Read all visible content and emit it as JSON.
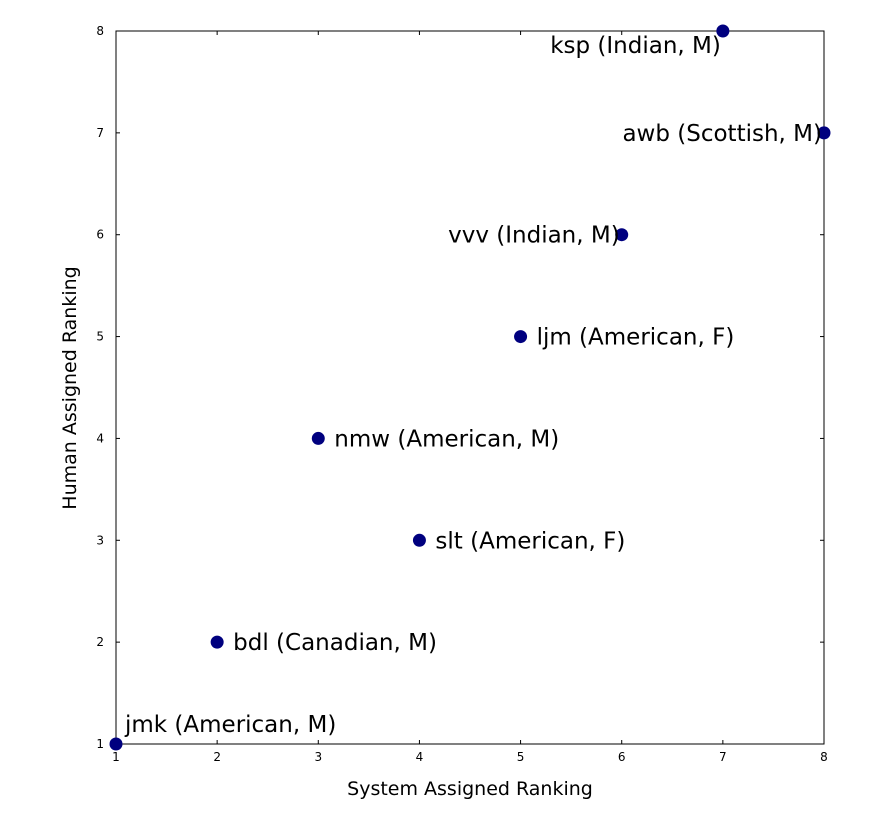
{
  "chart_data": {
    "type": "scatter",
    "title": "",
    "xlabel": "System Assigned Ranking",
    "ylabel": "Human Assigned Ranking",
    "xlim": [
      1,
      8
    ],
    "ylim": [
      1,
      8
    ],
    "xticks": [
      "1",
      "2",
      "3",
      "4",
      "5",
      "6",
      "7",
      "8"
    ],
    "yticks": [
      "1",
      "2",
      "3",
      "4",
      "5",
      "6",
      "7",
      "8"
    ],
    "grid": false,
    "point_color": "#00007f",
    "points": [
      {
        "x": 1,
        "y": 1,
        "label": "jmk (American, M)"
      },
      {
        "x": 2,
        "y": 2,
        "label": "bdl (Canadian, M)"
      },
      {
        "x": 3,
        "y": 4,
        "label": "nmw (American, M)"
      },
      {
        "x": 4,
        "y": 3,
        "label": "slt (American, F)"
      },
      {
        "x": 5,
        "y": 5,
        "label": "ljm (American, F)"
      },
      {
        "x": 6,
        "y": 6,
        "label": "vvv (Indian, M)"
      },
      {
        "x": 7,
        "y": 8,
        "label": "ksp (Indian, M)"
      },
      {
        "x": 8,
        "y": 7,
        "label": "awb (Scottish, M)"
      }
    ]
  }
}
